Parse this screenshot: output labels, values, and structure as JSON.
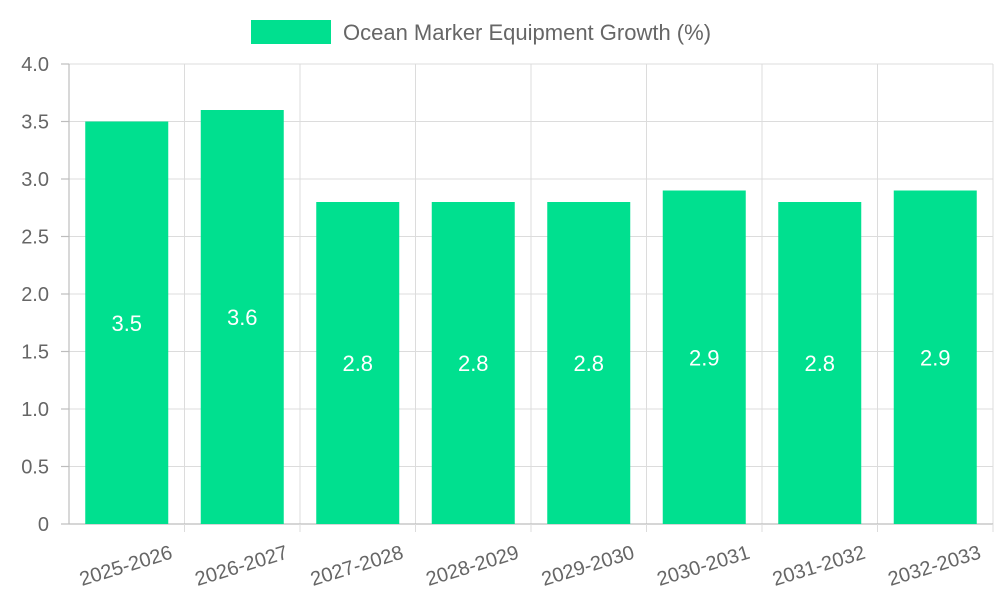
{
  "chart_data": {
    "type": "bar",
    "categories": [
      "2025-2026",
      "2026-2027",
      "2027-2028",
      "2028-2029",
      "2029-2030",
      "2030-2031",
      "2031-2032",
      "2032-2033"
    ],
    "series": [
      {
        "name": "Ocean Marker Equipment Growth (%)",
        "values": [
          3.5,
          3.6,
          2.8,
          2.8,
          2.8,
          2.9,
          2.8,
          2.9
        ],
        "color": "#00e08f"
      }
    ],
    "yticks": [
      "0",
      "0.5",
      "1.0",
      "1.5",
      "2.0",
      "2.5",
      "3.0",
      "3.5",
      "4.0"
    ],
    "ylim": [
      0,
      4
    ],
    "grid": true,
    "legend_position": "top-center",
    "data_labels": [
      "3.5",
      "3.6",
      "2.8",
      "2.8",
      "2.8",
      "2.9",
      "2.8",
      "2.9"
    ]
  }
}
